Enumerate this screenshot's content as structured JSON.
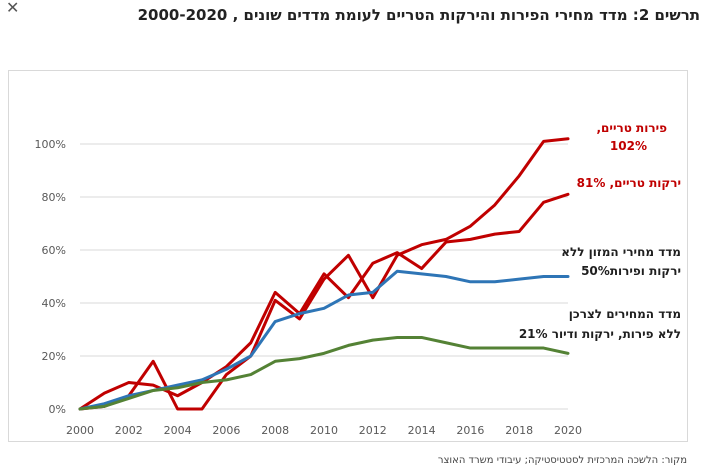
{
  "header": {
    "title": "תרשים 2: מדד מחירי הפירות והירקות הטריים לעומת מדדים שונים , 2000-2020",
    "close_glyph": "✕"
  },
  "footer": {
    "source": "מקור: הלשכה המרכזית לסטטיסטיקה; עיבודי משרד האוצר"
  },
  "chart_data": {
    "type": "line",
    "title": "תרשים 2: מדד מחירי הפירות והירקות הטריים לעומת מדדים שונים , 2000-2020",
    "xlabel": "",
    "ylabel": "",
    "x": [
      2000,
      2001,
      2002,
      2003,
      2004,
      2005,
      2006,
      2007,
      2008,
      2009,
      2010,
      2011,
      2012,
      2013,
      2014,
      2015,
      2016,
      2017,
      2018,
      2019,
      2020
    ],
    "xlim": [
      2000,
      2020
    ],
    "ylim": [
      0,
      100
    ],
    "xticks": [
      "2000",
      "2002",
      "2004",
      "2006",
      "2008",
      "2010",
      "2012",
      "2014",
      "2016",
      "2018",
      "2020"
    ],
    "yticks": [
      "0%",
      "20%",
      "40%",
      "60%",
      "80%",
      "100%"
    ],
    "grid": "horizontal",
    "series": [
      {
        "color": "#c00000",
        "values": [
          0,
          6,
          10,
          9,
          5,
          10,
          16,
          25,
          44,
          36,
          51,
          42,
          55,
          59,
          53,
          63,
          64,
          66,
          67,
          78,
          81
        ]
      },
      {
        "color": "#c00000",
        "values": [
          0,
          1,
          5,
          18,
          0,
          0,
          13,
          20,
          41,
          34,
          49,
          58,
          42,
          58,
          62,
          64,
          69,
          77,
          88,
          101,
          102
        ]
      },
      {
        "color": "#2e75b6",
        "values": [
          0,
          2,
          5,
          7,
          9,
          11,
          15,
          20,
          33,
          36,
          38,
          43,
          44,
          52,
          51,
          50,
          48,
          48,
          49,
          50,
          50
        ]
      },
      {
        "color": "#548235",
        "values": [
          0,
          1,
          4,
          7,
          8,
          10,
          11,
          13,
          18,
          19,
          21,
          24,
          26,
          27,
          27,
          25,
          23,
          23,
          23,
          23,
          21
        ]
      }
    ],
    "annotations": [
      {
        "text": "פירות טריים,",
        "color": "#c00000"
      },
      {
        "text": "102%",
        "color": "#c00000"
      },
      {
        "text": "ירקות טריים, 81%",
        "color": "#c00000"
      },
      {
        "text": "מדד מחירי המזון ללא",
        "color": "#1f1f1f"
      },
      {
        "text": "ירקות ופירות50%",
        "color": "#1f1f1f"
      },
      {
        "text": "מדד המחירים לצרכן",
        "color": "#1f1f1f"
      },
      {
        "text": "ללא פירות, ירקות ודיור 21%",
        "color": "#1f1f1f"
      }
    ]
  }
}
